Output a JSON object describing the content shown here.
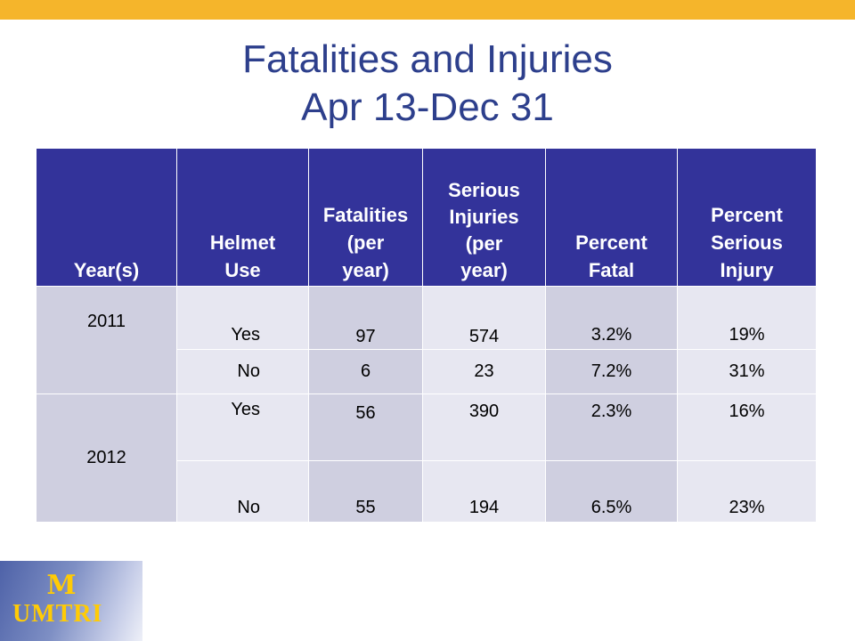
{
  "title": {
    "line1": "Fatalities and Injuries",
    "line2": "Apr 13-Dec 31"
  },
  "table": {
    "headers": {
      "year": "Year(s)",
      "helmet": [
        "Helmet",
        "Use"
      ],
      "fatalities": [
        "Fatalities",
        "(per",
        "year)"
      ],
      "serious": [
        "Serious",
        "Injuries",
        "(per",
        "year)"
      ],
      "pct_fatal": [
        "Percent",
        "Fatal"
      ],
      "pct_serious": [
        "Percent",
        "Serious",
        "Injury"
      ]
    },
    "rows": [
      {
        "year": "2011",
        "helmet": "Yes",
        "fatalities": "97",
        "serious": "574",
        "pct_fatal": "3.2%",
        "pct_serious": "19%"
      },
      {
        "helmet": "No",
        "fatalities": "6",
        "serious": "23",
        "pct_fatal": "7.2%",
        "pct_serious": "31%"
      },
      {
        "year": "2012",
        "helmet": "Yes",
        "fatalities": "56",
        "serious": "390",
        "pct_fatal": "2.3%",
        "pct_serious": "16%"
      },
      {
        "helmet": "No",
        "fatalities": "55",
        "serious": "194",
        "pct_fatal": "6.5%",
        "pct_serious": "23%"
      }
    ]
  },
  "logo": {
    "mark": "M",
    "text": "UMTRI"
  },
  "colors": {
    "accent_bar": "#f5b52b",
    "title": "#2d3f8c",
    "header_bg": "#33339a",
    "row_dark": "#cfcfe0",
    "row_light": "#e7e7f1",
    "logo_gold": "#ffcb05"
  }
}
